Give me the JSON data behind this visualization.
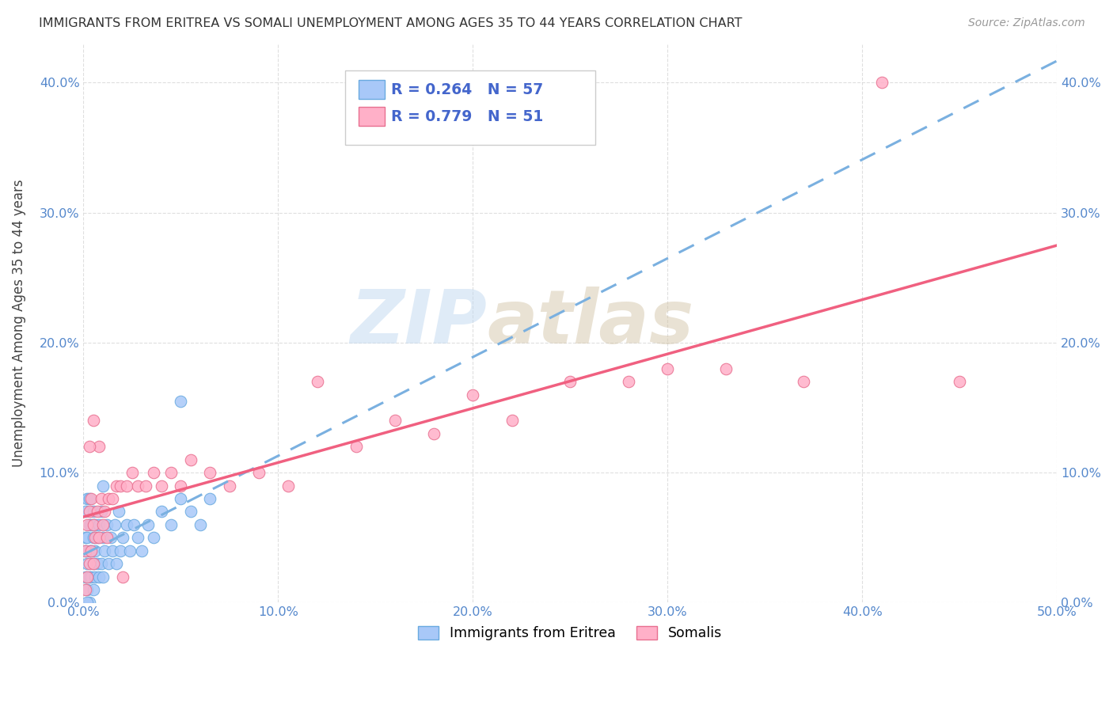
{
  "title": "IMMIGRANTS FROM ERITREA VS SOMALI UNEMPLOYMENT AMONG AGES 35 TO 44 YEARS CORRELATION CHART",
  "source": "Source: ZipAtlas.com",
  "ylabel": "Unemployment Among Ages 35 to 44 years",
  "xlim": [
    0.0,
    0.5
  ],
  "ylim": [
    0.0,
    0.43
  ],
  "xticks": [
    0.0,
    0.1,
    0.2,
    0.3,
    0.4,
    0.5
  ],
  "yticks": [
    0.0,
    0.1,
    0.2,
    0.3,
    0.4
  ],
  "xticklabels": [
    "0.0%",
    "10.0%",
    "20.0%",
    "30.0%",
    "40.0%",
    "50.0%"
  ],
  "yticklabels": [
    "0.0%",
    "10.0%",
    "20.0%",
    "30.0%",
    "40.0%"
  ],
  "eritrea_color": "#a8c8f8",
  "eritrea_edge": "#6aaae0",
  "somali_color": "#ffb0c8",
  "somali_edge": "#e87090",
  "eritrea_R": 0.264,
  "eritrea_N": 57,
  "somali_R": 0.779,
  "somali_N": 51,
  "legend_label_eritrea": "Immigrants from Eritrea",
  "legend_label_somali": "Somalis",
  "watermark_zip": "ZIP",
  "watermark_atlas": "atlas",
  "eritrea_line_color": "#7ab0e0",
  "somali_line_color": "#f06080",
  "background_color": "#ffffff",
  "grid_color": "#d8d8d8",
  "tick_color": "#5588cc",
  "legend_text_color": "#4466cc",
  "title_color": "#333333",
  "source_color": "#999999",
  "ylabel_color": "#444444",
  "eritrea_x": [
    0.001,
    0.001,
    0.001,
    0.001,
    0.002,
    0.002,
    0.002,
    0.002,
    0.003,
    0.003,
    0.003,
    0.003,
    0.004,
    0.004,
    0.004,
    0.005,
    0.005,
    0.005,
    0.005,
    0.006,
    0.006,
    0.006,
    0.007,
    0.007,
    0.008,
    0.008,
    0.009,
    0.009,
    0.01,
    0.01,
    0.011,
    0.012,
    0.013,
    0.014,
    0.015,
    0.016,
    0.017,
    0.018,
    0.019,
    0.02,
    0.022,
    0.024,
    0.026,
    0.028,
    0.03,
    0.033,
    0.036,
    0.04,
    0.045,
    0.05,
    0.055,
    0.06,
    0.065,
    0.05,
    0.01,
    0.003,
    0.002
  ],
  "eritrea_y": [
    0.02,
    0.04,
    0.05,
    0.07,
    0.01,
    0.03,
    0.05,
    0.08,
    0.02,
    0.04,
    0.06,
    0.08,
    0.02,
    0.04,
    0.06,
    0.01,
    0.03,
    0.05,
    0.07,
    0.02,
    0.04,
    0.06,
    0.03,
    0.05,
    0.02,
    0.06,
    0.03,
    0.07,
    0.02,
    0.05,
    0.04,
    0.06,
    0.03,
    0.05,
    0.04,
    0.06,
    0.03,
    0.07,
    0.04,
    0.05,
    0.06,
    0.04,
    0.06,
    0.05,
    0.04,
    0.06,
    0.05,
    0.07,
    0.06,
    0.08,
    0.07,
    0.06,
    0.08,
    0.155,
    0.09,
    0.0,
    0.0
  ],
  "somali_x": [
    0.001,
    0.001,
    0.002,
    0.002,
    0.003,
    0.003,
    0.004,
    0.004,
    0.005,
    0.005,
    0.006,
    0.007,
    0.008,
    0.009,
    0.01,
    0.011,
    0.012,
    0.013,
    0.015,
    0.017,
    0.019,
    0.022,
    0.025,
    0.028,
    0.032,
    0.036,
    0.04,
    0.045,
    0.05,
    0.055,
    0.065,
    0.075,
    0.09,
    0.105,
    0.12,
    0.14,
    0.16,
    0.18,
    0.2,
    0.22,
    0.25,
    0.28,
    0.3,
    0.33,
    0.37,
    0.41,
    0.45,
    0.008,
    0.005,
    0.003,
    0.02
  ],
  "somali_y": [
    0.01,
    0.04,
    0.02,
    0.06,
    0.03,
    0.07,
    0.04,
    0.08,
    0.03,
    0.06,
    0.05,
    0.07,
    0.05,
    0.08,
    0.06,
    0.07,
    0.05,
    0.08,
    0.08,
    0.09,
    0.09,
    0.09,
    0.1,
    0.09,
    0.09,
    0.1,
    0.09,
    0.1,
    0.09,
    0.11,
    0.1,
    0.09,
    0.1,
    0.09,
    0.17,
    0.12,
    0.14,
    0.13,
    0.16,
    0.14,
    0.17,
    0.17,
    0.18,
    0.18,
    0.17,
    0.4,
    0.17,
    0.12,
    0.14,
    0.12,
    0.02
  ]
}
